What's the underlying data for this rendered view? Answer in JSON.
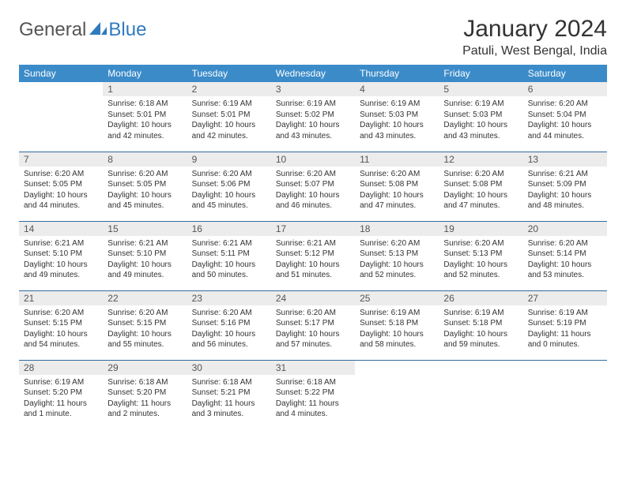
{
  "brand": {
    "part1": "General",
    "part2": "Blue"
  },
  "title": "January 2024",
  "location": "Patuli, West Bengal, India",
  "colors": {
    "header_bg": "#3b8bc9",
    "header_text": "#ffffff",
    "daynum_bg": "#ececec",
    "border": "#2f6b9e",
    "brand_blue": "#2f7bbf"
  },
  "weekdays": [
    "Sunday",
    "Monday",
    "Tuesday",
    "Wednesday",
    "Thursday",
    "Friday",
    "Saturday"
  ],
  "weeks": [
    [
      null,
      {
        "n": "1",
        "sr": "6:18 AM",
        "ss": "5:01 PM",
        "dl": "10 hours and 42 minutes."
      },
      {
        "n": "2",
        "sr": "6:19 AM",
        "ss": "5:01 PM",
        "dl": "10 hours and 42 minutes."
      },
      {
        "n": "3",
        "sr": "6:19 AM",
        "ss": "5:02 PM",
        "dl": "10 hours and 43 minutes."
      },
      {
        "n": "4",
        "sr": "6:19 AM",
        "ss": "5:03 PM",
        "dl": "10 hours and 43 minutes."
      },
      {
        "n": "5",
        "sr": "6:19 AM",
        "ss": "5:03 PM",
        "dl": "10 hours and 43 minutes."
      },
      {
        "n": "6",
        "sr": "6:20 AM",
        "ss": "5:04 PM",
        "dl": "10 hours and 44 minutes."
      }
    ],
    [
      {
        "n": "7",
        "sr": "6:20 AM",
        "ss": "5:05 PM",
        "dl": "10 hours and 44 minutes."
      },
      {
        "n": "8",
        "sr": "6:20 AM",
        "ss": "5:05 PM",
        "dl": "10 hours and 45 minutes."
      },
      {
        "n": "9",
        "sr": "6:20 AM",
        "ss": "5:06 PM",
        "dl": "10 hours and 45 minutes."
      },
      {
        "n": "10",
        "sr": "6:20 AM",
        "ss": "5:07 PM",
        "dl": "10 hours and 46 minutes."
      },
      {
        "n": "11",
        "sr": "6:20 AM",
        "ss": "5:08 PM",
        "dl": "10 hours and 47 minutes."
      },
      {
        "n": "12",
        "sr": "6:20 AM",
        "ss": "5:08 PM",
        "dl": "10 hours and 47 minutes."
      },
      {
        "n": "13",
        "sr": "6:21 AM",
        "ss": "5:09 PM",
        "dl": "10 hours and 48 minutes."
      }
    ],
    [
      {
        "n": "14",
        "sr": "6:21 AM",
        "ss": "5:10 PM",
        "dl": "10 hours and 49 minutes."
      },
      {
        "n": "15",
        "sr": "6:21 AM",
        "ss": "5:10 PM",
        "dl": "10 hours and 49 minutes."
      },
      {
        "n": "16",
        "sr": "6:21 AM",
        "ss": "5:11 PM",
        "dl": "10 hours and 50 minutes."
      },
      {
        "n": "17",
        "sr": "6:21 AM",
        "ss": "5:12 PM",
        "dl": "10 hours and 51 minutes."
      },
      {
        "n": "18",
        "sr": "6:20 AM",
        "ss": "5:13 PM",
        "dl": "10 hours and 52 minutes."
      },
      {
        "n": "19",
        "sr": "6:20 AM",
        "ss": "5:13 PM",
        "dl": "10 hours and 52 minutes."
      },
      {
        "n": "20",
        "sr": "6:20 AM",
        "ss": "5:14 PM",
        "dl": "10 hours and 53 minutes."
      }
    ],
    [
      {
        "n": "21",
        "sr": "6:20 AM",
        "ss": "5:15 PM",
        "dl": "10 hours and 54 minutes."
      },
      {
        "n": "22",
        "sr": "6:20 AM",
        "ss": "5:15 PM",
        "dl": "10 hours and 55 minutes."
      },
      {
        "n": "23",
        "sr": "6:20 AM",
        "ss": "5:16 PM",
        "dl": "10 hours and 56 minutes."
      },
      {
        "n": "24",
        "sr": "6:20 AM",
        "ss": "5:17 PM",
        "dl": "10 hours and 57 minutes."
      },
      {
        "n": "25",
        "sr": "6:19 AM",
        "ss": "5:18 PM",
        "dl": "10 hours and 58 minutes."
      },
      {
        "n": "26",
        "sr": "6:19 AM",
        "ss": "5:18 PM",
        "dl": "10 hours and 59 minutes."
      },
      {
        "n": "27",
        "sr": "6:19 AM",
        "ss": "5:19 PM",
        "dl": "11 hours and 0 minutes."
      }
    ],
    [
      {
        "n": "28",
        "sr": "6:19 AM",
        "ss": "5:20 PM",
        "dl": "11 hours and 1 minute."
      },
      {
        "n": "29",
        "sr": "6:18 AM",
        "ss": "5:20 PM",
        "dl": "11 hours and 2 minutes."
      },
      {
        "n": "30",
        "sr": "6:18 AM",
        "ss": "5:21 PM",
        "dl": "11 hours and 3 minutes."
      },
      {
        "n": "31",
        "sr": "6:18 AM",
        "ss": "5:22 PM",
        "dl": "11 hours and 4 minutes."
      },
      null,
      null,
      null
    ]
  ]
}
